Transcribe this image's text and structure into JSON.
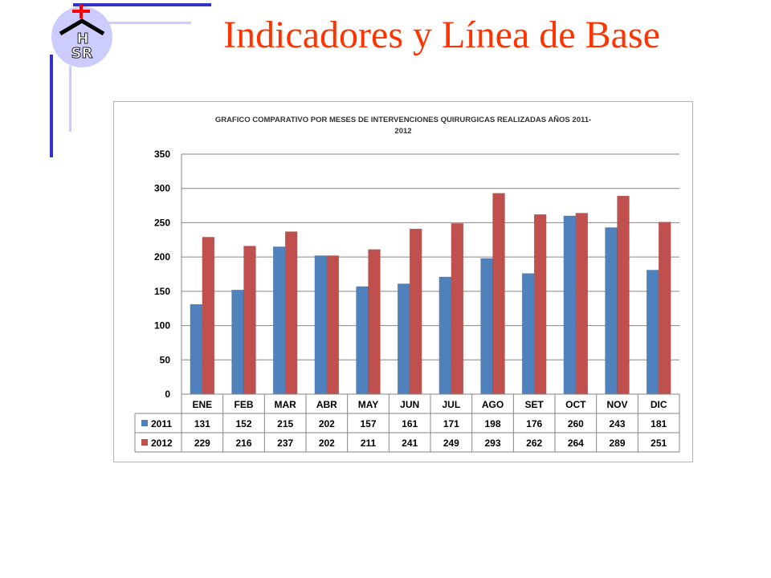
{
  "slide": {
    "title": "Indicadores y Línea de Base",
    "logo_text": "HSR"
  },
  "colors": {
    "title": "#ff3300",
    "series_2011": "#4f81bd",
    "series_2012": "#c0504d",
    "deco_dark": "#3333cc",
    "deco_light": "#ccccff",
    "logo_cross": "#ff0000"
  },
  "chart_data": {
    "type": "bar",
    "title_lines": [
      "GRAFICO COMPARATIVO POR MESES DE INTERVENCIONES  QUIRURGICAS REALIZADAS AÑOS 2011-",
      "2012"
    ],
    "categories": [
      "ENE",
      "FEB",
      "MAR",
      "ABR",
      "MAY",
      "JUN",
      "JUL",
      "AGO",
      "SET",
      "OCT",
      "NOV",
      "DIC"
    ],
    "series": [
      {
        "name": "2011",
        "color": "#4f81bd",
        "values": [
          131,
          152,
          215,
          202,
          157,
          161,
          171,
          198,
          176,
          260,
          243,
          181
        ]
      },
      {
        "name": "2012",
        "color": "#c0504d",
        "values": [
          229,
          216,
          237,
          202,
          211,
          241,
          249,
          293,
          262,
          264,
          289,
          251
        ]
      }
    ],
    "yticks": [
      "0",
      "50",
      "100",
      "150",
      "200",
      "250",
      "300",
      "350"
    ],
    "ylim": [
      0,
      350
    ],
    "grid": true,
    "data_table": true
  }
}
